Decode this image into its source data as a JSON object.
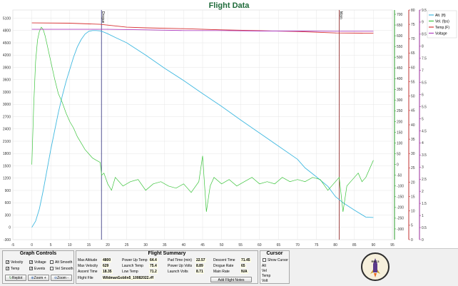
{
  "title": "Flight Data",
  "chart_data": {
    "type": "line",
    "xlim": [
      -5,
      95
    ],
    "x_ticks": [
      "-5",
      "0",
      "5",
      "10",
      "15",
      "20",
      "25",
      "30",
      "35",
      "40",
      "45",
      "50",
      "55",
      "60",
      "65",
      "70",
      "75",
      "80",
      "85",
      "90",
      "95"
    ],
    "y_left": {
      "lim": [
        -300,
        5300
      ],
      "ticks": [
        "-300",
        "0",
        "300",
        "600",
        "900",
        "1200",
        "1500",
        "1800",
        "2100",
        "2400",
        "2700",
        "3000",
        "3300",
        "3600",
        "3900",
        "4200",
        "4500",
        "4800",
        "5100"
      ],
      "color": "#4a90b8"
    },
    "y_vel": {
      "lim": [
        -350,
        720
      ],
      "ticks": [
        "-300",
        "-250",
        "-200",
        "-150",
        "-100",
        "-50",
        "0",
        "50",
        "100",
        "150",
        "200",
        "250",
        "300",
        "350",
        "400",
        "450",
        "500",
        "550",
        "600",
        "650",
        "700"
      ],
      "color": "#2e9e2e"
    },
    "y_temp": {
      "lim": [
        0,
        80
      ],
      "ticks": [
        "0",
        "5",
        "10",
        "15",
        "20",
        "25",
        "30",
        "35",
        "40",
        "45",
        "50",
        "55",
        "60",
        "65",
        "70",
        "75",
        "80"
      ],
      "color": "#c03030"
    },
    "y_volt": {
      "lim": [
        0,
        9.5
      ],
      "ticks": [
        "0",
        "0.5",
        "1",
        "1.5",
        "2",
        "2.5",
        "3",
        "3.5",
        "4",
        "4.5",
        "5",
        "5.5",
        "6",
        "6.5",
        "7",
        "7.5",
        "8",
        "8.5",
        "9",
        "9.5"
      ],
      "color": "#9a2a9a"
    },
    "events": [
      {
        "label": "Drogue",
        "x": 18.35
      },
      {
        "label": "Main",
        "x": 81.0
      }
    ],
    "legend_position": "top-right",
    "series": [
      {
        "name": "Alt. (ft)",
        "color": "#3fb8e0",
        "x": [
          0,
          1,
          2,
          3,
          4,
          5,
          6,
          7,
          8,
          9,
          10,
          11,
          12,
          13,
          14,
          15,
          16,
          17,
          18,
          18.35,
          19,
          20,
          22,
          25,
          30,
          35,
          40,
          45,
          50,
          55,
          60,
          65,
          70,
          72,
          75,
          78,
          80,
          82,
          85,
          88,
          90
        ],
        "y": [
          0,
          150,
          450,
          900,
          1400,
          1900,
          2350,
          2800,
          3200,
          3550,
          3850,
          4150,
          4400,
          4580,
          4710,
          4780,
          4800,
          4800,
          4790,
          4780,
          4760,
          4720,
          4630,
          4500,
          4200,
          3880,
          3580,
          3260,
          2950,
          2620,
          2300,
          1980,
          1660,
          1450,
          1230,
          1000,
          750,
          600,
          420,
          250,
          240
        ]
      },
      {
        "name": "Vel. (fps)",
        "color": "#3cc43c",
        "x": [
          0,
          0.5,
          1,
          1.5,
          2,
          2.5,
          3,
          3.5,
          4,
          5,
          6,
          7,
          8,
          9,
          10,
          11,
          12,
          13,
          14,
          15,
          16,
          17,
          18,
          18.4,
          19,
          20,
          21,
          22,
          24,
          26,
          28,
          30,
          32,
          34,
          36,
          38,
          40,
          42,
          44,
          45,
          46,
          47,
          48,
          50,
          52,
          54,
          56,
          58,
          60,
          62,
          64,
          66,
          68,
          70,
          72,
          74,
          76,
          78,
          80,
          81,
          82,
          83,
          84,
          85,
          86,
          87,
          88,
          89,
          90
        ],
        "y": [
          0,
          280,
          480,
          580,
          620,
          640,
          629,
          600,
          560,
          480,
          400,
          330,
          290,
          240,
          200,
          170,
          130,
          100,
          70,
          50,
          30,
          20,
          10,
          -50,
          -40,
          -90,
          -120,
          -60,
          -100,
          -80,
          -70,
          -120,
          -90,
          -80,
          -100,
          -110,
          -90,
          -130,
          -80,
          40,
          -220,
          -100,
          -60,
          -90,
          -70,
          -100,
          -80,
          -60,
          -90,
          -80,
          -90,
          -60,
          -80,
          -70,
          -80,
          -60,
          -70,
          -120,
          -80,
          -60,
          -220,
          -100,
          -80,
          -60,
          -40,
          -80,
          -60,
          -20,
          20
        ]
      },
      {
        "name": "Temp.(F)",
        "color": "#d83434",
        "x": [
          0,
          10,
          18,
          25,
          30,
          40,
          50,
          60,
          70,
          80,
          90
        ],
        "y": [
          75.5,
          75.4,
          75.0,
          74.0,
          73.8,
          73.5,
          73.1,
          72.8,
          72.5,
          72.0,
          71.9
        ]
      },
      {
        "name": "Voltage",
        "color": "#b040c0",
        "x": [
          0,
          10,
          20,
          30,
          40,
          50,
          60,
          70,
          80,
          90
        ],
        "y": [
          8.7,
          8.7,
          8.7,
          8.68,
          8.65,
          8.65,
          8.63,
          8.63,
          8.62,
          8.62
        ]
      }
    ]
  },
  "graph_controls": {
    "title": "Graph Controls",
    "checkboxes": [
      {
        "label": "Velocity",
        "checked": true
      },
      {
        "label": "Voltage",
        "checked": true
      },
      {
        "label": "Alt Smooth",
        "checked": false
      },
      {
        "label": "Temp",
        "checked": true
      },
      {
        "label": "Events",
        "checked": true
      },
      {
        "label": "Vel Smooth",
        "checked": false
      }
    ],
    "buttons": {
      "replot": "Replot",
      "zoom_in": "Zoom +",
      "zoom_out": "Zoom -"
    }
  },
  "flight_summary": {
    "title": "Flight Summary",
    "max_altitude_label": "Max Altitude",
    "max_altitude": "4800",
    "max_velocity_label": "Max Velocity",
    "max_velocity": "629",
    "ascent_time_label": "Ascent Time",
    "ascent_time": "18.35",
    "flight_file_label": "Flight File",
    "flight_file": "WildmanGoblin5_10082022.rff",
    "power_up_temp_label": "Power Up Temp",
    "power_up_temp": "64.4",
    "launch_temp_label": "Launch Temp",
    "launch_temp": "75.4",
    "low_temp_label": "Low Temp",
    "low_temp": "71.2",
    "pad_time_label": "Pad Time (min)",
    "pad_time": "22.57",
    "power_up_volts_label": "Power Up Volts",
    "power_up_volts": "8.89",
    "launch_volts_label": "Launch Volts",
    "launch_volts": "8.71",
    "descent_time_label": "Descent Time",
    "descent_time": "71.45",
    "drogue_rate_label": "Drogue Rate",
    "drogue_rate": "65",
    "main_rate_label": "Main Rate",
    "main_rate": "N/A",
    "add_notes_button": "Add Flight Notes"
  },
  "cursor": {
    "title": "Cursor",
    "show_cursor_label": "Show Cursor",
    "rows": [
      "Alt",
      "Vel",
      "Temp",
      "Volt"
    ]
  },
  "logo_text": "RRC3"
}
